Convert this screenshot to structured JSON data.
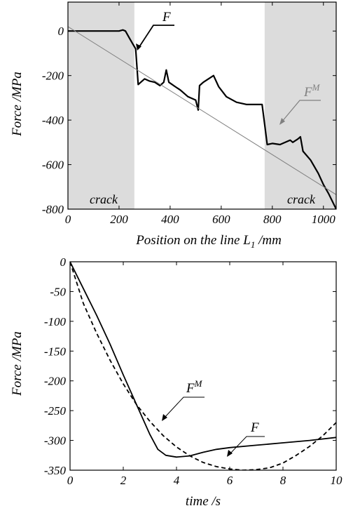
{
  "chart_data": [
    {
      "type": "line",
      "ylabel": "Force /MPa",
      "xlabel": "Position on the line L",
      "xlabel_sub": "1",
      "xlabel_unit": " /mm",
      "xlim": [
        0,
        1050
      ],
      "ylim": [
        -800,
        130
      ],
      "xticks": [
        0,
        200,
        400,
        600,
        800,
        1000
      ],
      "yticks": [
        0,
        -200,
        -400,
        -600,
        -800
      ],
      "xtick_labels": [
        "0",
        "200",
        "400",
        "600",
        "800",
        "1000"
      ],
      "ytick_labels": [
        "0",
        "-200",
        "-400",
        "-600",
        "-800"
      ],
      "shaded_regions": [
        {
          "x": [
            0,
            260
          ],
          "label": "crack"
        },
        {
          "x": [
            770,
            1050
          ],
          "label": "crack"
        }
      ],
      "series": [
        {
          "name": "F",
          "style": "solid-thick",
          "color": "#000000",
          "x": [
            0,
            100,
            200,
            215,
            225,
            240,
            255,
            265,
            275,
            300,
            320,
            340,
            360,
            375,
            385,
            395,
            420,
            440,
            470,
            500,
            510,
            515,
            530,
            550,
            570,
            590,
            620,
            660,
            700,
            730,
            760,
            770,
            780,
            800,
            830,
            860,
            870,
            880,
            900,
            910,
            920,
            950,
            980,
            1000,
            1020,
            1050
          ],
          "y": [
            0,
            0,
            0,
            5,
            0,
            -30,
            -60,
            -80,
            -240,
            -215,
            -225,
            -230,
            -245,
            -230,
            -175,
            -230,
            -250,
            -265,
            -295,
            -310,
            -355,
            -245,
            -230,
            -215,
            -200,
            -250,
            -295,
            -320,
            -330,
            -330,
            -330,
            -420,
            -510,
            -505,
            -510,
            -495,
            -490,
            -500,
            -485,
            -475,
            -540,
            -580,
            -640,
            -690,
            -730,
            -800
          ]
        },
        {
          "name": "F",
          "name_sup": "M",
          "style": "solid-thin",
          "color": "#808080",
          "x": [
            0,
            1050
          ],
          "y": [
            20,
            -735
          ]
        }
      ]
    },
    {
      "type": "line",
      "ylabel": "Force /MPa",
      "xlabel": "time /s",
      "xlim": [
        0,
        10
      ],
      "ylim": [
        -350,
        0
      ],
      "xticks": [
        0,
        2,
        4,
        6,
        8,
        10
      ],
      "yticks": [
        0,
        -50,
        -100,
        -150,
        -200,
        -250,
        -300,
        -350
      ],
      "xtick_labels": [
        "0",
        "2",
        "4",
        "6",
        "8",
        "10"
      ],
      "ytick_labels": [
        "0",
        "-50",
        "-100",
        "-150",
        "-200",
        "-250",
        "-300",
        "-350"
      ],
      "series": [
        {
          "name": "F",
          "style": "solid",
          "color": "#000000",
          "x": [
            0,
            0.5,
            1,
            1.5,
            2,
            2.5,
            3,
            3.3,
            3.6,
            4,
            4.5,
            5,
            5.5,
            6,
            7,
            8,
            9,
            10
          ],
          "y": [
            0,
            -45,
            -90,
            -138,
            -190,
            -240,
            -290,
            -315,
            -325,
            -328,
            -326,
            -320,
            -315,
            -312,
            -308,
            -304,
            -300,
            -295
          ]
        },
        {
          "name": "F",
          "name_sup": "M",
          "style": "dashed",
          "color": "#000000",
          "x": [
            0,
            0.5,
            1,
            1.5,
            2,
            2.5,
            3,
            3.5,
            4,
            4.5,
            5,
            5.5,
            6,
            6.5,
            7,
            7.5,
            8,
            8.5,
            9,
            9.5,
            10
          ],
          "y": [
            0,
            -70,
            -120,
            -165,
            -205,
            -240,
            -268,
            -292,
            -311,
            -326,
            -337,
            -344,
            -348,
            -350,
            -349,
            -346,
            -338,
            -325,
            -310,
            -292,
            -270
          ]
        }
      ]
    }
  ]
}
